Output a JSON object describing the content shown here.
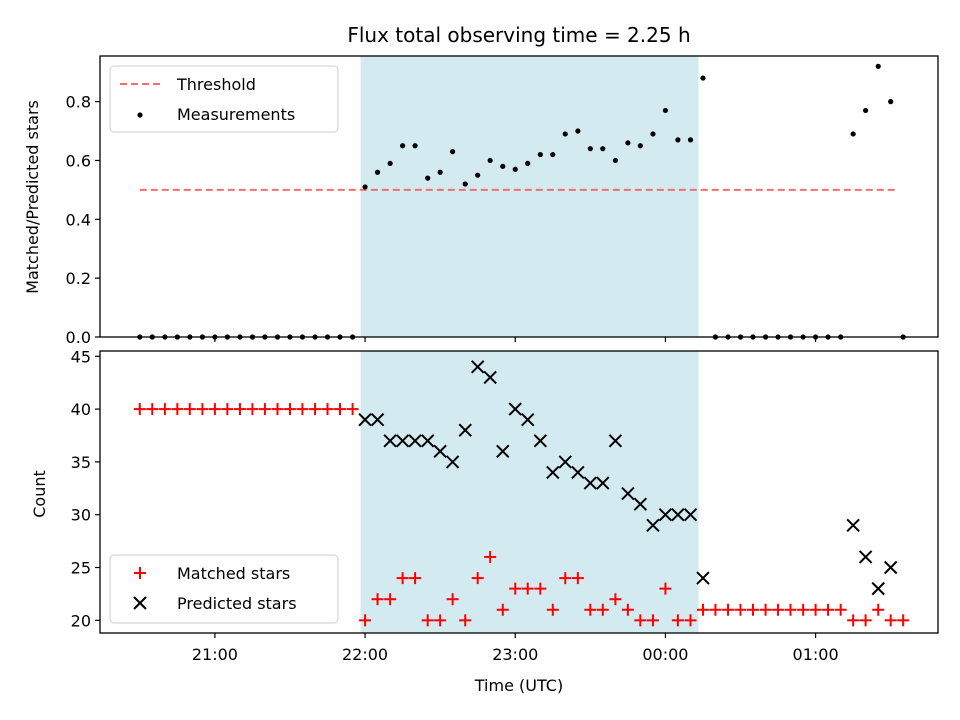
{
  "chart_data": {
    "title": "Flux total observing time = 2.25 h",
    "xlabel": "Time (UTC)",
    "x_ticks": [
      "21:00",
      "22:00",
      "23:00",
      "00:00",
      "01:00"
    ],
    "x_tick_hours": [
      21,
      22,
      23,
      24,
      25
    ],
    "x_range_hours": [
      20.235,
      25.815
    ],
    "observing_window_hours": [
      21.97,
      24.22
    ],
    "observing_window_color": "#d3eaf0",
    "panels": [
      {
        "type": "scatter",
        "ylabel": "Matched/Predicted stars",
        "ylim": [
          0.0,
          0.955
        ],
        "y_ticks": [
          0.0,
          0.2,
          0.4,
          0.6,
          0.8
        ],
        "y_tick_labels": [
          "0.0",
          "0.2",
          "0.4",
          "0.6",
          "0.8"
        ],
        "legend": [
          "Threshold",
          "Measurements"
        ],
        "legend_position": "upper left",
        "threshold": {
          "name": "Threshold",
          "value": 0.5,
          "x_range_hours": [
            20.5,
            25.53
          ],
          "color": "#f07070"
        },
        "series": [
          {
            "name": "Measurements",
            "color": "#000000",
            "marker": "dot",
            "x_hours": [
              20.5,
              20.583,
              20.667,
              20.75,
              20.833,
              20.917,
              21.0,
              21.083,
              21.167,
              21.25,
              21.333,
              21.417,
              21.5,
              21.583,
              21.667,
              21.75,
              21.833,
              21.917,
              22.0,
              22.083,
              22.167,
              22.25,
              22.333,
              22.417,
              22.5,
              22.583,
              22.667,
              22.75,
              22.833,
              22.917,
              23.0,
              23.083,
              23.167,
              23.25,
              23.333,
              23.417,
              23.5,
              23.583,
              23.667,
              23.75,
              23.833,
              23.917,
              24.0,
              24.083,
              24.167,
              24.25,
              24.333,
              24.417,
              24.5,
              24.583,
              24.667,
              24.75,
              24.833,
              24.917,
              25.0,
              25.083,
              25.167,
              25.25,
              25.333,
              25.417,
              25.5,
              25.583
            ],
            "values": [
              0,
              0,
              0,
              0,
              0,
              0,
              0,
              0,
              0,
              0,
              0,
              0,
              0,
              0,
              0,
              0,
              0,
              0,
              0.51,
              0.56,
              0.59,
              0.65,
              0.65,
              0.54,
              0.56,
              0.63,
              0.52,
              0.55,
              0.6,
              0.58,
              0.57,
              0.59,
              0.62,
              0.62,
              0.69,
              0.7,
              0.64,
              0.64,
              0.6,
              0.66,
              0.65,
              0.69,
              0.77,
              0.67,
              0.67,
              0.88,
              0,
              0,
              0,
              0,
              0,
              0,
              0,
              0,
              0,
              0,
              0,
              0.69,
              0.77,
              0.92,
              0.8,
              0
            ]
          }
        ]
      },
      {
        "type": "scatter",
        "ylabel": "Count",
        "ylim": [
          18.8,
          45.5
        ],
        "y_ticks": [
          20,
          25,
          30,
          35,
          40,
          45
        ],
        "y_tick_labels": [
          "20",
          "25",
          "30",
          "35",
          "40",
          "45"
        ],
        "legend": [
          "Matched stars",
          "Predicted stars"
        ],
        "legend_position": "lower left",
        "series": [
          {
            "name": "Matched stars",
            "color": "#ff0000",
            "marker": "plus",
            "x_hours": [
              20.5,
              20.583,
              20.667,
              20.75,
              20.833,
              20.917,
              21.0,
              21.083,
              21.167,
              21.25,
              21.333,
              21.417,
              21.5,
              21.583,
              21.667,
              21.75,
              21.833,
              21.917,
              22.0,
              22.083,
              22.167,
              22.25,
              22.333,
              22.417,
              22.5,
              22.583,
              22.667,
              22.75,
              22.833,
              22.917,
              23.0,
              23.083,
              23.167,
              23.25,
              23.333,
              23.417,
              23.5,
              23.583,
              23.667,
              23.75,
              23.833,
              23.917,
              24.0,
              24.083,
              24.167,
              24.25,
              24.333,
              24.417,
              24.5,
              24.583,
              24.667,
              24.75,
              24.833,
              24.917,
              25.0,
              25.083,
              25.167,
              25.25,
              25.333,
              25.417,
              25.5,
              25.583
            ],
            "values": [
              40,
              40,
              40,
              40,
              40,
              40,
              40,
              40,
              40,
              40,
              40,
              40,
              40,
              40,
              40,
              40,
              40,
              40,
              20,
              22,
              22,
              24,
              24,
              20,
              20,
              22,
              20,
              24,
              26,
              21,
              23,
              23,
              23,
              21,
              24,
              24,
              21,
              21,
              22,
              21,
              20,
              20,
              23,
              20,
              20,
              21,
              21,
              21,
              21,
              21,
              21,
              21,
              21,
              21,
              21,
              21,
              21,
              20,
              20,
              21,
              20,
              20
            ]
          },
          {
            "name": "Predicted stars",
            "color": "#000000",
            "marker": "x",
            "x_hours": [
              22.0,
              22.083,
              22.167,
              22.25,
              22.333,
              22.417,
              22.5,
              22.583,
              22.667,
              22.75,
              22.833,
              22.917,
              23.0,
              23.083,
              23.167,
              23.25,
              23.333,
              23.417,
              23.5,
              23.583,
              23.667,
              23.75,
              23.833,
              23.917,
              24.0,
              24.083,
              24.167,
              24.25,
              25.25,
              25.333,
              25.417,
              25.5
            ],
            "values": [
              39,
              39,
              37,
              37,
              37,
              37,
              36,
              35,
              38,
              44,
              43,
              36,
              40,
              39,
              37,
              34,
              35,
              34,
              33,
              33,
              37,
              32,
              31,
              29,
              30,
              30,
              30,
              24,
              29,
              26,
              23,
              25
            ]
          }
        ]
      }
    ]
  }
}
